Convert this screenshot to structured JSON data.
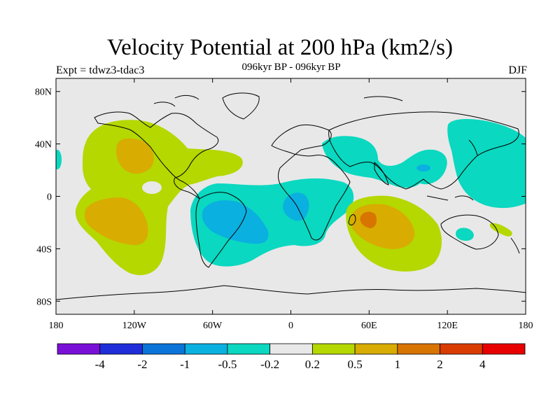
{
  "title": "Velocity Potential at 200 hPa (km2/s)",
  "subtitle": "096kyr BP - 096kyr BP",
  "left_label": "Expt = tdwz3-tdac3",
  "right_label": "DJF",
  "colors": {
    "land_fill": "#e8e8e8",
    "coast": "#000000",
    "levels": [
      "#7a10d8",
      "#1f2ed8",
      "#0a74d8",
      "#0ab0e0",
      "#0ad8c0",
      "#e8e8e8",
      "#b4d800",
      "#d8ac00",
      "#d87400",
      "#d83c00",
      "#e80000"
    ]
  },
  "chart_data": {
    "type": "contour-map",
    "projection": "cylindrical-equidistant",
    "lon_range": [
      -180,
      180
    ],
    "lat_range": [
      -90,
      90
    ],
    "x_ticks": [
      "180",
      "120W",
      "60W",
      "0",
      "60E",
      "120E",
      "180"
    ],
    "x_tick_values": [
      -180,
      -120,
      -60,
      0,
      60,
      120,
      180
    ],
    "y_ticks": [
      "80N",
      "40N",
      "0",
      "40S",
      "80S"
    ],
    "y_tick_values": [
      80,
      40,
      0,
      -40,
      -80
    ],
    "colorbar_labels": [
      "-4",
      "-2",
      "-1",
      "-0.5",
      "-0.2",
      "0.2",
      "0.5",
      "1",
      "2",
      "4"
    ],
    "contour_levels": [
      -4,
      -2,
      -1,
      -0.5,
      -0.2,
      0.2,
      0.5,
      1,
      2,
      4
    ]
  }
}
